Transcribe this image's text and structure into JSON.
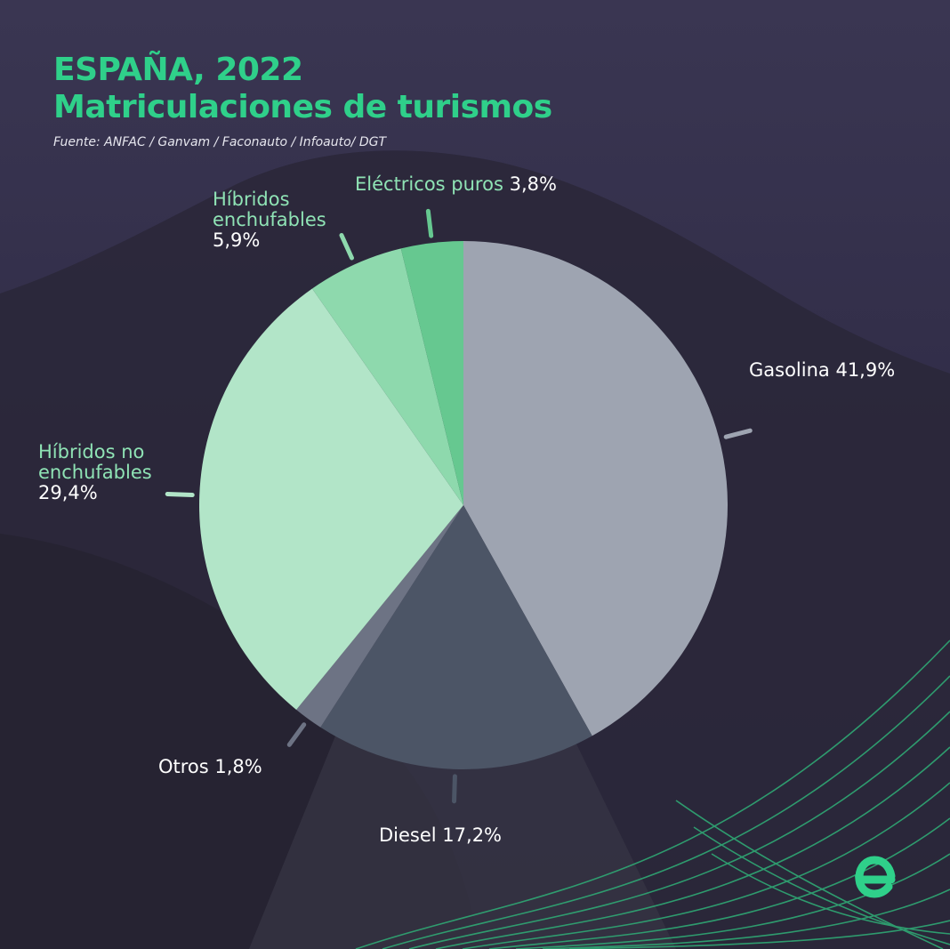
{
  "header": {
    "title_line1": "ESPAÑA, 2022",
    "title_line2": "Matriculaciones de turismos",
    "source": "Fuente: ANFAC / Ganvam / Faconauto / Infoauto/ DGT"
  },
  "colors": {
    "title": "#2fd08a",
    "background": "#312d48",
    "label_green": "#8fe3b5",
    "label_white": "#ffffff"
  },
  "chart_data": {
    "type": "pie",
    "title": "Matriculaciones de turismos",
    "start_angle": "12 o'clock",
    "direction": "clockwise",
    "slices": [
      {
        "label": "Gasolina",
        "value": 41.9,
        "value_label": "41,9%",
        "color": "#9ea4b1"
      },
      {
        "label": "Diesel",
        "value": 17.2,
        "value_label": "17,2%",
        "color": "#4c5566"
      },
      {
        "label": "Otros",
        "value": 1.8,
        "value_label": "1,8%",
        "color": "#6d7384"
      },
      {
        "label": "Híbridos no enchufables",
        "value": 29.4,
        "value_label": "29,4%",
        "color": "#b2e5c8"
      },
      {
        "label": "Híbridos enchufables",
        "value": 5.9,
        "value_label": "5,9%",
        "color": "#8ed9ad"
      },
      {
        "label": "Eléctricos puros",
        "value": 3.8,
        "value_label": "3,8%",
        "color": "#66c890"
      }
    ]
  },
  "labels": {
    "gasolina": "Gasolina 41,9%",
    "diesel": "Diesel 17,2%",
    "otros": "Otros 1,8%",
    "hne_line1": "Híbridos no",
    "hne_line2": "enchufables",
    "hne_value": "29,4%",
    "he_line1": "Híbridos",
    "he_line2": "enchufables",
    "he_value": "5,9%",
    "ep_name": "Eléctricos puros",
    "ep_value": "3,8%"
  },
  "logo": {
    "icon": "e-logo-icon",
    "color": "#2fd08a"
  }
}
